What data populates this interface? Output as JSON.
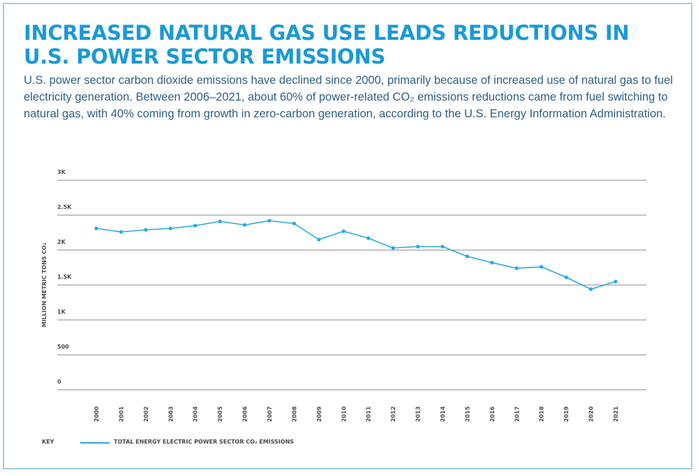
{
  "header": {
    "title": "INCREASED NATURAL GAS USE LEADS REDUCTIONS IN U.S. POWER SECTOR EMISSIONS",
    "subtitle": "U.S. power sector carbon dioxide emissions have declined since 2000, primarily because of increased use of natural gas to fuel electricity generation. Between 2006–2021, about 60% of power-related CO₂ emissions reductions came from fuel switching to natural gas, with 40% coming from growth in zero-carbon generation, according to the U.S. Energy Information Administration."
  },
  "colors": {
    "title": "#1a9ad6",
    "subtitle": "#2e5f86",
    "series": "#29a8e0",
    "grid": "#8a8a8a",
    "frame": "#9ccfee"
  },
  "legend": {
    "key_label": "KEY",
    "series_label": "TOTAL ENERGY ELECTRIC POWER SECTOR CO₂ EMISSIONS"
  },
  "chart_data": {
    "type": "line",
    "ylabel": "MILLION METRIC TONS CO₂",
    "xlabel": "",
    "ylim": [
      0,
      3000
    ],
    "yticks": [
      0,
      500,
      1000,
      1500,
      2000,
      2500,
      3000
    ],
    "ytick_labels": [
      "0",
      "500",
      "1K",
      "1.5K",
      "2K",
      "2.5K",
      "3K"
    ],
    "grid": "horizontal",
    "legend_position": "bottom-left",
    "categories": [
      "2000",
      "2001",
      "2002",
      "2003",
      "2004",
      "2005",
      "2006",
      "2007",
      "2008",
      "2009",
      "2010",
      "2011",
      "2012",
      "2013",
      "2014",
      "2015",
      "2016",
      "2017",
      "2018",
      "2019",
      "2020",
      "2021"
    ],
    "series": [
      {
        "name": "TOTAL ENERGY ELECTRIC POWER SECTOR CO₂ EMISSIONS",
        "values": [
          2310,
          2260,
          2290,
          2310,
          2350,
          2410,
          2360,
          2420,
          2380,
          2150,
          2270,
          2170,
          2030,
          2050,
          2050,
          1910,
          1820,
          1740,
          1760,
          1610,
          1440,
          1550
        ]
      }
    ]
  }
}
